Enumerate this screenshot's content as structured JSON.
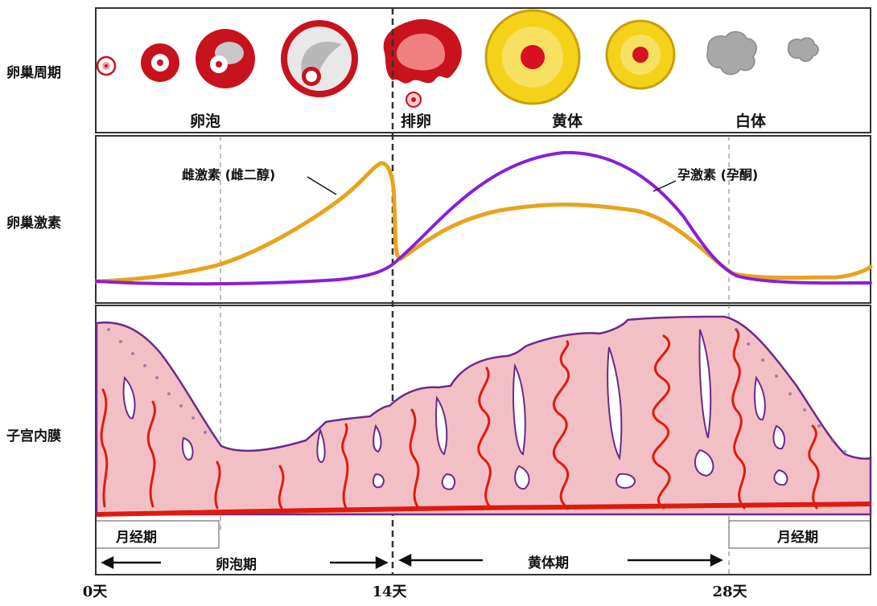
{
  "rows": {
    "ovarian_cycle": "卵巢周期",
    "ovarian_hormones": "卵巢激素",
    "endometrium": "子宫内膜"
  },
  "ovary_stages": {
    "follicle": "卵泡",
    "ovulation": "排卵",
    "corpus_luteum": "黄体",
    "corpus_albicans": "白体"
  },
  "hormones": {
    "estrogen": "雌激素 (雌二醇)",
    "progesterone": "孕激素 (孕酮)"
  },
  "colors": {
    "estrogen": "#E8A31C",
    "progesterone": "#8A1FD6",
    "endometrium_fill": "#F2C0C4",
    "endometrium_edge": "#6A2A8A",
    "vessel": "#E01A10",
    "follicle_red": "#C8121E",
    "luteum_yellow": "#F4D21A",
    "albicans_gray": "#A8A8A8"
  },
  "phases": {
    "menstrual_left": "月经期",
    "menstrual_right": "月经期",
    "follicular": "卵泡期",
    "luteal": "黄体期"
  },
  "days": {
    "d0": "0天",
    "d14": "14天",
    "d28": "28天"
  }
}
